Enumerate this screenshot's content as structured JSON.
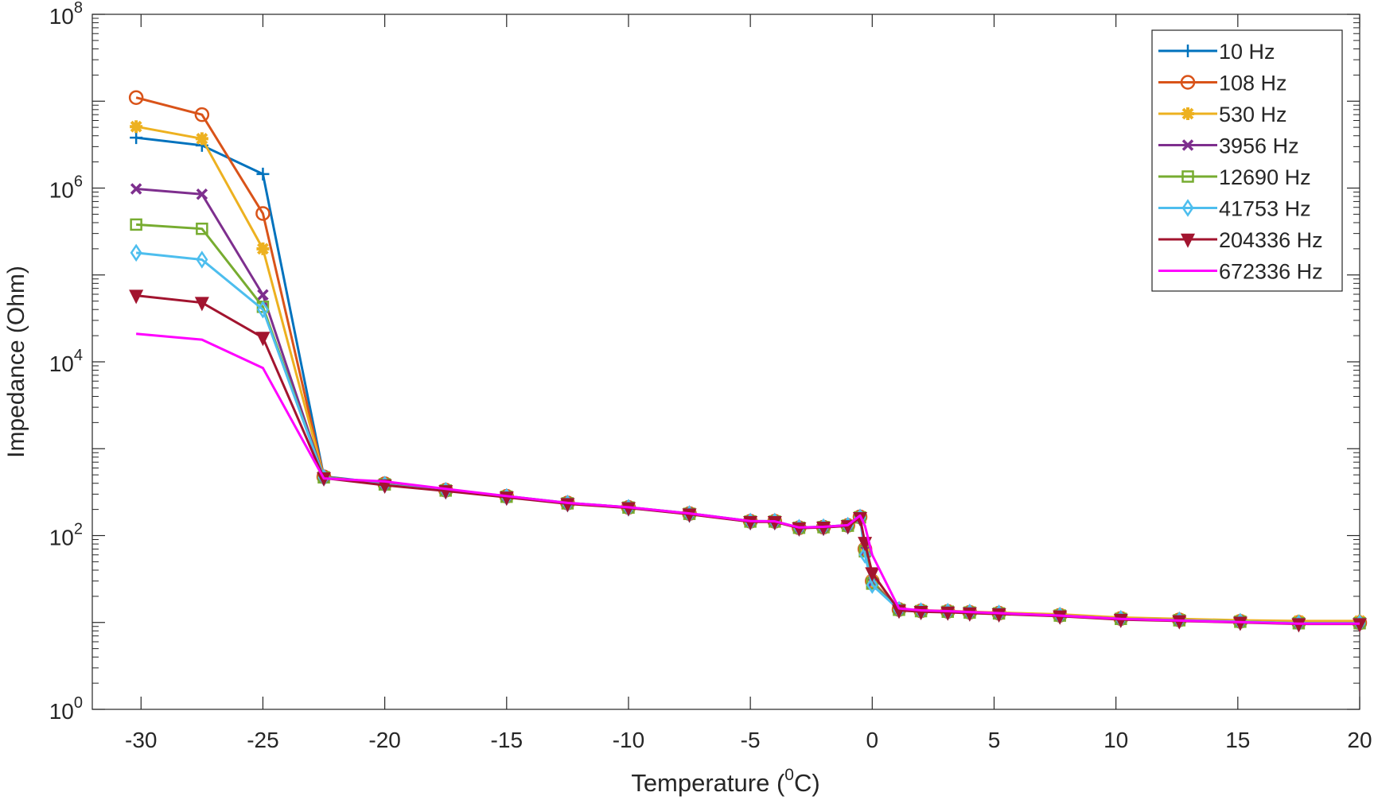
{
  "chart_data": {
    "type": "line",
    "title": "",
    "xlabel": {
      "pre": "Temperature (",
      "sup": "0",
      "post": "C)"
    },
    "ylabel": "Impedance (Ohm)",
    "xscale": "linear",
    "yscale": "log",
    "xlim": [
      -32,
      20
    ],
    "ylim": [
      1,
      100000000
    ],
    "xticks": [
      -30,
      -25,
      -20,
      -15,
      -10,
      -5,
      0,
      5,
      10,
      15,
      20
    ],
    "xtick_labels": [
      "-30",
      "-25",
      "-20",
      "-15",
      "-10",
      "-5",
      "0",
      "5",
      "10",
      "15",
      "20"
    ],
    "yticks": [
      {
        "base": "10",
        "exp": "0"
      },
      {
        "base": "10",
        "exp": "2"
      },
      {
        "base": "10",
        "exp": "4"
      },
      {
        "base": "10",
        "exp": "6"
      },
      {
        "base": "10",
        "exp": "8"
      }
    ],
    "grid": false,
    "legend_position": "top-right",
    "x": [
      -30.2,
      -27.5,
      -25,
      -22.5,
      -20,
      -17.5,
      -15,
      -12.5,
      -10,
      -7.5,
      -5,
      -4,
      -3,
      -2,
      -1,
      -0.5,
      -0.3,
      0,
      1.1,
      2,
      3.1,
      4,
      5.2,
      7.7,
      10.2,
      12.6,
      15.1,
      17.5,
      20
    ],
    "series": [
      {
        "name": "10 Hz",
        "color": "#0072BD",
        "marker": "plus",
        "values": [
          3800000,
          3100000,
          1450000,
          480,
          400,
          335,
          285,
          238,
          212,
          180,
          147,
          146,
          124,
          126,
          132,
          165,
          72,
          30,
          14.2,
          13.7,
          13.5,
          13.2,
          12.9,
          12.2,
          11.2,
          10.8,
          10.4,
          10.1,
          10.0
        ]
      },
      {
        "name": "108 Hz",
        "color": "#D95319",
        "marker": "circle",
        "values": [
          11000000,
          7000000,
          510000,
          475,
          395,
          333,
          283,
          237,
          211,
          179,
          146,
          146,
          123,
          125,
          131,
          164,
          70,
          30,
          14.1,
          13.6,
          13.4,
          13.1,
          12.8,
          12.1,
          11.1,
          10.7,
          10.3,
          10.0,
          9.9
        ]
      },
      {
        "name": "530 Hz",
        "color": "#EDB120",
        "marker": "star",
        "values": [
          5100000,
          3700000,
          200000,
          472,
          392,
          332,
          282,
          236,
          211,
          179,
          146,
          145,
          123,
          125,
          131,
          163,
          70,
          30,
          14.3,
          13.8,
          13.6,
          13.3,
          13.0,
          12.4,
          11.4,
          11.0,
          10.6,
          10.4,
          10.4
        ]
      },
      {
        "name": "3956 Hz",
        "color": "#7E2F8E",
        "marker": "x",
        "values": [
          980000,
          850000,
          59000,
          470,
          390,
          330,
          280,
          235,
          210,
          178,
          145,
          145,
          123,
          125,
          130,
          162,
          68,
          29,
          14.0,
          13.5,
          13.3,
          13.0,
          12.7,
          12.0,
          11.0,
          10.6,
          10.2,
          9.8,
          9.8
        ]
      },
      {
        "name": "12690 Hz",
        "color": "#77AC30",
        "marker": "square",
        "values": [
          380000,
          340000,
          43000,
          468,
          388,
          330,
          280,
          235,
          210,
          178,
          145,
          145,
          123,
          125,
          130,
          162,
          66,
          28,
          14.0,
          13.5,
          13.3,
          13.0,
          12.7,
          12.0,
          11.0,
          10.6,
          10.2,
          9.8,
          9.8
        ]
      },
      {
        "name": "41753 Hz",
        "color": "#4DBEEE",
        "marker": "diamond",
        "values": [
          180000,
          150000,
          40000,
          466,
          386,
          329,
          279,
          234,
          209,
          177,
          145,
          145,
          123,
          125,
          130,
          162,
          60,
          27,
          14.0,
          13.5,
          13.3,
          13.0,
          12.7,
          12.0,
          11.0,
          10.6,
          10.2,
          9.8,
          9.8
        ]
      },
      {
        "name": "204336 Hz",
        "color": "#A2142F",
        "marker": "triangle-down",
        "values": [
          58000,
          48000,
          19000,
          460,
          380,
          326,
          276,
          232,
          208,
          176,
          144,
          144,
          122,
          124,
          129,
          160,
          83,
          37,
          13.8,
          13.3,
          13.1,
          12.8,
          12.5,
          11.8,
          10.8,
          10.4,
          10.0,
          9.6,
          9.6
        ]
      },
      {
        "name": "672336 Hz",
        "color": "#FF00FF",
        "marker": "none",
        "values": [
          21000,
          18000,
          8500,
          455,
          420,
          345,
          285,
          238,
          212,
          180,
          147,
          146,
          124,
          126,
          132,
          170,
          130,
          60,
          14.5,
          13.8,
          13.5,
          13.2,
          12.8,
          12.0,
          11.0,
          10.5,
          10.1,
          9.7,
          9.7
        ]
      }
    ]
  }
}
